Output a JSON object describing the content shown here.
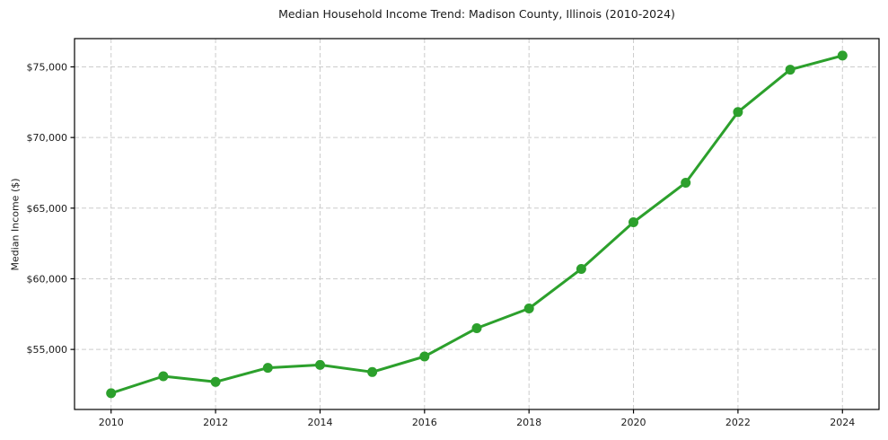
{
  "chart_data": {
    "type": "line",
    "title": "Median Household Income Trend: Madison County, Illinois (2010-2024)",
    "xlabel": "",
    "ylabel": "Median Income ($)",
    "x": [
      2010,
      2011,
      2012,
      2013,
      2014,
      2015,
      2016,
      2017,
      2018,
      2019,
      2020,
      2021,
      2022,
      2023,
      2024
    ],
    "values": [
      51900,
      53100,
      52700,
      53700,
      53900,
      53400,
      54500,
      56500,
      57900,
      60700,
      64000,
      66800,
      71800,
      74800,
      75800
    ],
    "series_name": "Median Household Income",
    "xlim": [
      2009.3,
      2024.7
    ],
    "ylim": [
      50750,
      77000
    ],
    "xticks": [
      2010,
      2012,
      2014,
      2016,
      2018,
      2020,
      2022,
      2024
    ],
    "xtick_labels": [
      "2010",
      "2012",
      "2014",
      "2016",
      "2018",
      "2020",
      "2022",
      "2024"
    ],
    "yticks": [
      55000,
      60000,
      65000,
      70000,
      75000
    ],
    "ytick_labels": [
      "$55,000",
      "$60,000",
      "$65,000",
      "$70,000",
      "$75,000"
    ],
    "grid": true,
    "grid_style": "dashed",
    "legend": false,
    "line_color": "#2ca02c",
    "grid_color": "#cccccc",
    "axis_color": "#000000",
    "text_color": "#1a1a1a",
    "background": "#ffffff"
  }
}
